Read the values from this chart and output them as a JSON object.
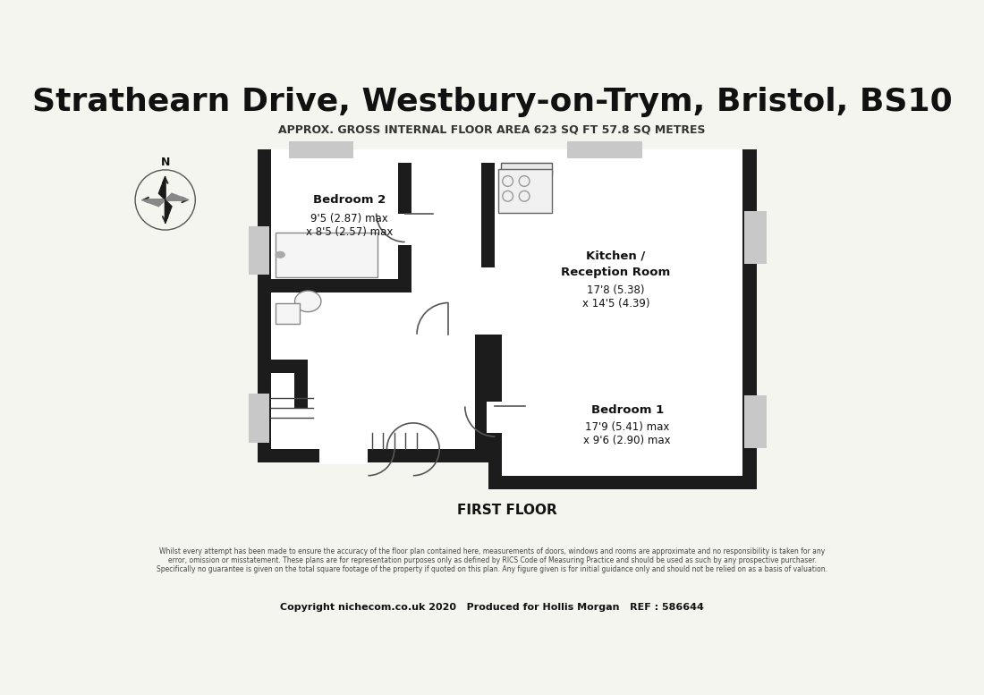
{
  "title": "Strathearn Drive, Westbury-on-Trym, Bristol, BS10",
  "subtitle": "APPROX. GROSS INTERNAL FLOOR AREA 623 SQ FT 57.8 SQ METRES",
  "floor_label": "FIRST FLOOR",
  "disclaimer": "Whilst every attempt has been made to ensure the accuracy of the floor plan contained here, measurements of doors, windows and rooms are approximate and no responsibility is taken for any\nerror, omission or misstatement. These plans are for representation purposes only as defined by RICS Code of Measuring Practice and should be used as such by any prospective purchaser.\nSpecifically no guarantee is given on the total square footage of the property if quoted on this plan. Any figure given is for initial guidance only and should not be relied on as a basis of valuation.",
  "copyright": "Copyright nichecom.co.uk 2020   Produced for Hollis Morgan   REF : 586644",
  "bg_color": "#f5f5f0",
  "wall_color": "#1a1a1a",
  "room_bg": "#ffffff",
  "title_fontsize": 26,
  "subtitle_fontsize": 9,
  "room_label_fontsize": 9
}
